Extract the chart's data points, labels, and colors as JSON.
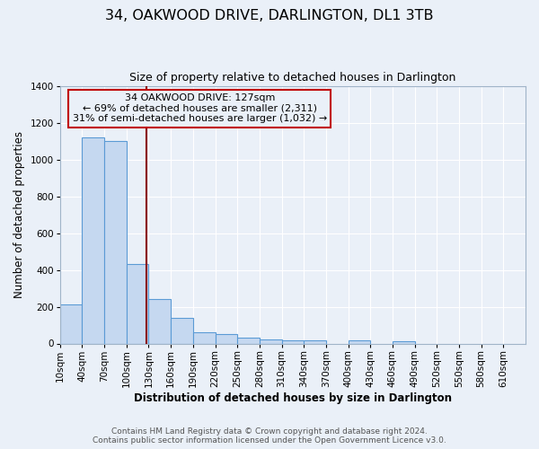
{
  "title": "34, OAKWOOD DRIVE, DARLINGTON, DL1 3TB",
  "subtitle": "Size of property relative to detached houses in Darlington",
  "xlabel": "Distribution of detached houses by size in Darlington",
  "ylabel": "Number of detached properties",
  "footer_line1": "Contains HM Land Registry data © Crown copyright and database right 2024.",
  "footer_line2": "Contains public sector information licensed under the Open Government Licence v3.0.",
  "bin_labels": [
    "10sqm",
    "40sqm",
    "70sqm",
    "100sqm",
    "130sqm",
    "160sqm",
    "190sqm",
    "220sqm",
    "250sqm",
    "280sqm",
    "310sqm",
    "340sqm",
    "370sqm",
    "400sqm",
    "430sqm",
    "460sqm",
    "490sqm",
    "520sqm",
    "550sqm",
    "580sqm",
    "610sqm"
  ],
  "bin_edges": [
    10,
    40,
    70,
    100,
    130,
    160,
    190,
    220,
    250,
    280,
    310,
    340,
    370,
    400,
    430,
    460,
    490,
    520,
    550,
    580,
    610
  ],
  "bar_heights": [
    210,
    1120,
    1100,
    430,
    240,
    140,
    60,
    50,
    30,
    20,
    15,
    15,
    0,
    15,
    0,
    10,
    0,
    0,
    0,
    0
  ],
  "bar_color": "#c5d8f0",
  "bar_edge_color": "#5b9bd5",
  "property_size": 127,
  "vline_color": "#8b0000",
  "annotation_title": "34 OAKWOOD DRIVE: 127sqm",
  "annotation_line1": "← 69% of detached houses are smaller (2,311)",
  "annotation_line2": "31% of semi-detached houses are larger (1,032) →",
  "annotation_box_edge": "#c00000",
  "ylim": [
    0,
    1400
  ],
  "yticks": [
    0,
    200,
    400,
    600,
    800,
    1000,
    1200,
    1400
  ],
  "bg_color": "#eaf0f8",
  "grid_color": "#ffffff",
  "title_fontsize": 11.5,
  "subtitle_fontsize": 9,
  "axis_label_fontsize": 8.5,
  "tick_fontsize": 7.5,
  "footer_fontsize": 6.5
}
